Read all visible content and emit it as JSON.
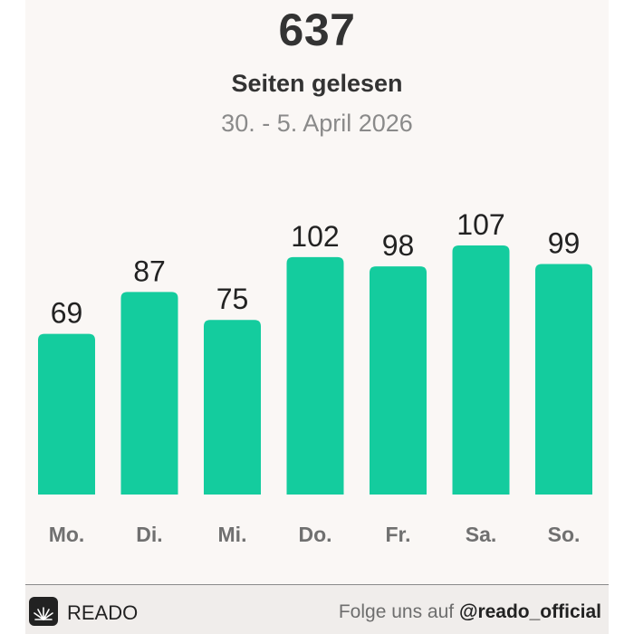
{
  "header": {
    "total": "637",
    "subtitle": "Seiten gelesen",
    "date_range": "30. - 5. April 2026"
  },
  "chart_data": {
    "type": "bar",
    "categories": [
      "Mo.",
      "Di.",
      "Mi.",
      "Do.",
      "Fr.",
      "Sa.",
      "So."
    ],
    "values": [
      69,
      87,
      75,
      102,
      98,
      107,
      99
    ],
    "title": "",
    "xlabel": "",
    "ylabel": "",
    "ylim": [
      0,
      107
    ],
    "grid": false,
    "legend": "none",
    "bar_color": "#14cc9e",
    "label_color": "#222222",
    "category_color": "#707070"
  },
  "footer": {
    "logo_icon": "book-leaf-icon",
    "brand": "READO",
    "follow_text": "Folge uns auf",
    "handle": "@reado_official"
  }
}
